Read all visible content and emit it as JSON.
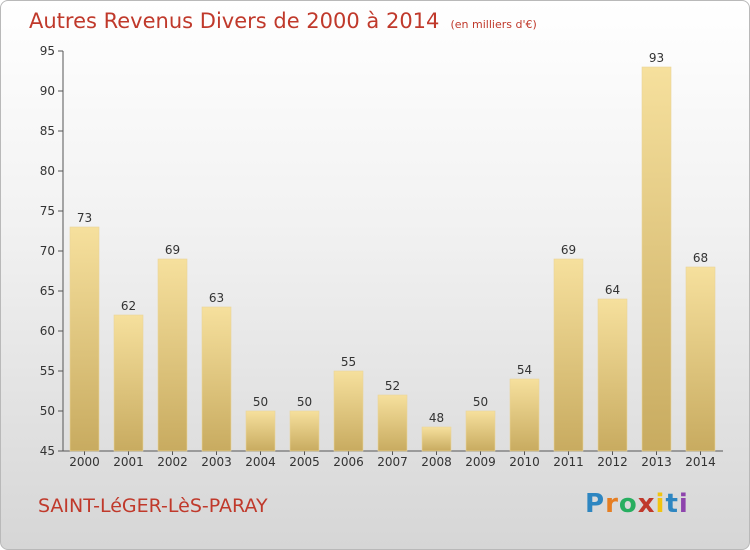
{
  "header": {
    "title": "Autres Revenus Divers de 2000 à 2014",
    "unit": "(en milliers d'€)"
  },
  "footer": {
    "city": "SAINT-LéGER-LèS-PARAY",
    "brand": "Proxiti"
  },
  "colors": {
    "title": "#c0392b",
    "bar": "#e0c77e",
    "bar_light": "#f6e09d",
    "bar_dark": "#c7aa5e"
  },
  "chart_data": {
    "type": "bar",
    "title": "Autres Revenus Divers de 2000 à 2014",
    "subtitle": "(en milliers d'€)",
    "categories": [
      "2000",
      "2001",
      "2002",
      "2003",
      "2004",
      "2005",
      "2006",
      "2007",
      "2008",
      "2009",
      "2010",
      "2011",
      "2012",
      "2013",
      "2014"
    ],
    "values": [
      73,
      62,
      69,
      63,
      50,
      50,
      55,
      52,
      48,
      50,
      54,
      69,
      64,
      93,
      68
    ],
    "ylim": [
      45,
      95
    ],
    "yticks": [
      45,
      50,
      55,
      60,
      65,
      70,
      75,
      80,
      85,
      90,
      95
    ],
    "grid": false,
    "data_labels": true
  }
}
